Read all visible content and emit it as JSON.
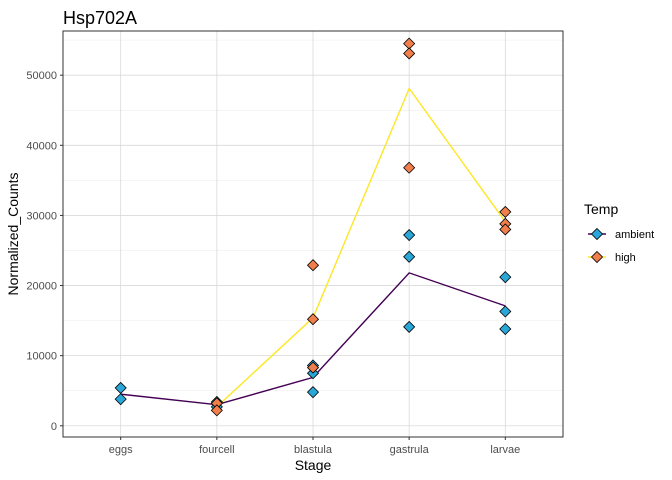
{
  "chart_data": {
    "type": "scatter",
    "title": "Hsp702A",
    "xlabel": "Stage",
    "ylabel": "Normalized_Counts",
    "categories": [
      "eggs",
      "fourcell",
      "blastula",
      "gastrula",
      "larvae"
    ],
    "ylim": [
      0,
      55000
    ],
    "yticks": [
      0,
      10000,
      20000,
      30000,
      40000,
      50000
    ],
    "grid": true,
    "legend_title": "Temp",
    "legend_position": "right",
    "series": [
      {
        "name": "ambient",
        "color": "#2aa7d9",
        "line_color": "#440154",
        "points": [
          {
            "x": "eggs",
            "y": 5400
          },
          {
            "x": "eggs",
            "y": 3800
          },
          {
            "x": "fourcell",
            "y": 3400
          },
          {
            "x": "fourcell",
            "y": 2700
          },
          {
            "x": "blastula",
            "y": 7500
          },
          {
            "x": "blastula",
            "y": 4800
          },
          {
            "x": "blastula",
            "y": 8600
          },
          {
            "x": "gastrula",
            "y": 27200
          },
          {
            "x": "gastrula",
            "y": 24100
          },
          {
            "x": "gastrula",
            "y": 14100
          },
          {
            "x": "larvae",
            "y": 21200
          },
          {
            "x": "larvae",
            "y": 16300
          },
          {
            "x": "larvae",
            "y": 13800
          }
        ],
        "mean_line": [
          4500,
          3000,
          6900,
          21800,
          17100
        ]
      },
      {
        "name": "high",
        "color": "#f07f4b",
        "line_color": "#fde725",
        "points": [
          {
            "x": "fourcell",
            "y": 3200
          },
          {
            "x": "fourcell",
            "y": 2200
          },
          {
            "x": "blastula",
            "y": 22900
          },
          {
            "x": "blastula",
            "y": 15200
          },
          {
            "x": "blastula",
            "y": 8300
          },
          {
            "x": "gastrula",
            "y": 54500
          },
          {
            "x": "gastrula",
            "y": 53100
          },
          {
            "x": "gastrula",
            "y": 36800
          },
          {
            "x": "larvae",
            "y": 30500
          },
          {
            "x": "larvae",
            "y": 28800
          },
          {
            "x": "larvae",
            "y": 28000
          }
        ],
        "mean_line": [
          null,
          2700,
          15400,
          48100,
          29100
        ]
      }
    ]
  }
}
